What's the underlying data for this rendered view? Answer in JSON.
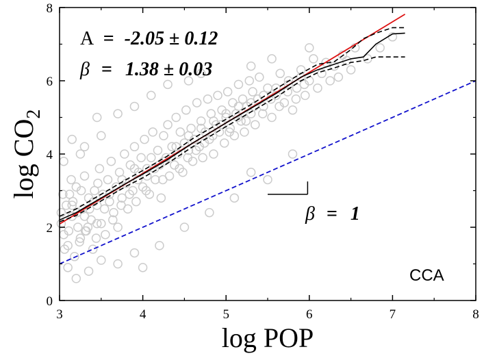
{
  "chart_data": {
    "type": "scatter",
    "title": "",
    "xlabel": "log POP",
    "ylabel": "log CO",
    "ylabel_subscript": "2",
    "xlim": [
      3,
      8
    ],
    "ylim": [
      0,
      8
    ],
    "x_ticks": [
      3,
      4,
      5,
      6,
      7,
      8
    ],
    "y_ticks": [
      0,
      2,
      4,
      6,
      8
    ],
    "dataset_tag": "CCA",
    "annotations": {
      "A_label": "A",
      "A_equals": "=",
      "A_value": "-2.05 ± 0.12",
      "beta_symbol": "β",
      "beta_equals": "=",
      "beta_value": "1.38 ± 0.03",
      "beta_ref_symbol": "β",
      "beta_ref_equals": "=",
      "beta_ref_value": "1"
    },
    "fit_line": {
      "name": "power-law fit",
      "color": "#dd1111",
      "intercept": -2.05,
      "slope": 1.38,
      "x_range": [
        3,
        7.15
      ]
    },
    "reference_line": {
      "name": "slope 1 reference",
      "color": "#1111cc",
      "intercept": -2,
      "slope": 1,
      "x_range": [
        3,
        8
      ]
    },
    "slope_marker": {
      "x_start": 5.5,
      "x_end": 5.98,
      "y_base": 2.9,
      "height": 0.35
    },
    "conditional_mean": {
      "x": [
        3.0,
        3.2,
        3.5,
        3.8,
        4.0,
        4.3,
        4.6,
        5.0,
        5.3,
        5.6,
        5.9,
        6.1,
        6.3,
        6.5,
        6.65,
        6.8,
        7.0,
        7.15
      ],
      "y": [
        2.2,
        2.4,
        2.8,
        3.2,
        3.45,
        3.85,
        4.3,
        4.85,
        5.25,
        5.65,
        6.1,
        6.3,
        6.45,
        6.6,
        6.65,
        7.0,
        7.28,
        7.3
      ]
    },
    "confidence_upper": {
      "x": [
        3.0,
        3.2,
        3.5,
        3.8,
        4.0,
        4.3,
        4.6,
        5.0,
        5.3,
        5.6,
        5.9,
        6.1,
        6.3,
        6.5,
        6.65,
        6.8,
        7.0,
        7.15
      ],
      "y": [
        2.3,
        2.5,
        2.9,
        3.3,
        3.55,
        3.95,
        4.42,
        4.95,
        5.35,
        5.78,
        6.2,
        6.45,
        6.52,
        6.85,
        7.15,
        7.3,
        7.45,
        7.45
      ]
    },
    "confidence_lower": {
      "x": [
        3.0,
        3.2,
        3.5,
        3.8,
        4.0,
        4.3,
        4.6,
        5.0,
        5.3,
        5.6,
        5.9,
        6.1,
        6.3,
        6.5,
        6.65,
        6.8,
        7.0,
        7.15
      ],
      "y": [
        2.15,
        2.32,
        2.72,
        3.12,
        3.35,
        3.75,
        4.2,
        4.75,
        5.15,
        5.55,
        6.0,
        6.22,
        6.35,
        6.5,
        6.55,
        6.65,
        6.65,
        6.65
      ]
    },
    "scatter_series": {
      "name": "cities",
      "color": "#cccccc",
      "points": [
        [
          3.02,
          2.1
        ],
        [
          3.05,
          1.8
        ],
        [
          3.08,
          2.6
        ],
        [
          3.1,
          1.5
        ],
        [
          3.12,
          2.9
        ],
        [
          3.15,
          2.3
        ],
        [
          3.18,
          1.2
        ],
        [
          3.2,
          3.1
        ],
        [
          3.22,
          2.0
        ],
        [
          3.25,
          1.7
        ],
        [
          3.28,
          2.5
        ],
        [
          3.3,
          3.4
        ],
        [
          3.32,
          1.9
        ],
        [
          3.35,
          2.8
        ],
        [
          3.38,
          2.2
        ],
        [
          3.4,
          1.4
        ],
        [
          3.42,
          3.0
        ],
        [
          3.45,
          2.6
        ],
        [
          3.48,
          3.6
        ],
        [
          3.5,
          2.1
        ],
        [
          3.52,
          2.9
        ],
        [
          3.55,
          1.8
        ],
        [
          3.58,
          3.3
        ],
        [
          3.6,
          2.7
        ],
        [
          3.62,
          3.8
        ],
        [
          3.65,
          2.4
        ],
        [
          3.68,
          3.1
        ],
        [
          3.7,
          2.0
        ],
        [
          3.72,
          3.5
        ],
        [
          3.75,
          2.8
        ],
        [
          3.78,
          4.0
        ],
        [
          3.8,
          3.2
        ],
        [
          3.82,
          2.5
        ],
        [
          3.85,
          3.7
        ],
        [
          3.88,
          3.0
        ],
        [
          3.9,
          4.2
        ],
        [
          3.92,
          2.7
        ],
        [
          3.95,
          3.5
        ],
        [
          3.98,
          3.9
        ],
        [
          4.0,
          3.1
        ],
        [
          4.02,
          4.4
        ],
        [
          4.05,
          3.6
        ],
        [
          4.08,
          2.9
        ],
        [
          4.1,
          3.9
        ],
        [
          4.12,
          4.6
        ],
        [
          4.15,
          3.3
        ],
        [
          4.18,
          4.1
        ],
        [
          4.2,
          3.7
        ],
        [
          4.22,
          2.8
        ],
        [
          4.25,
          4.5
        ],
        [
          4.28,
          3.9
        ],
        [
          4.3,
          4.8
        ],
        [
          4.32,
          3.4
        ],
        [
          4.35,
          4.2
        ],
        [
          4.38,
          3.7
        ],
        [
          4.4,
          5.0
        ],
        [
          4.42,
          4.0
        ],
        [
          4.45,
          4.6
        ],
        [
          4.48,
          3.5
        ],
        [
          4.5,
          4.3
        ],
        [
          4.52,
          5.2
        ],
        [
          4.55,
          4.1
        ],
        [
          4.58,
          4.7
        ],
        [
          4.6,
          3.8
        ],
        [
          4.62,
          4.4
        ],
        [
          4.65,
          5.4
        ],
        [
          4.68,
          4.2
        ],
        [
          4.7,
          4.9
        ],
        [
          4.72,
          3.9
        ],
        [
          4.75,
          4.6
        ],
        [
          4.78,
          5.5
        ],
        [
          4.8,
          4.4
        ],
        [
          4.82,
          5.1
        ],
        [
          4.85,
          4.0
        ],
        [
          4.88,
          4.8
        ],
        [
          4.9,
          5.6
        ],
        [
          4.92,
          4.6
        ],
        [
          4.95,
          5.2
        ],
        [
          4.98,
          4.3
        ],
        [
          5.0,
          5.0
        ],
        [
          5.02,
          5.7
        ],
        [
          5.05,
          4.7
        ],
        [
          5.08,
          5.4
        ],
        [
          5.1,
          4.5
        ],
        [
          5.12,
          5.1
        ],
        [
          5.15,
          5.9
        ],
        [
          5.18,
          4.9
        ],
        [
          5.2,
          5.5
        ],
        [
          5.22,
          4.6
        ],
        [
          5.25,
          5.3
        ],
        [
          5.28,
          6.0
        ],
        [
          5.3,
          5.1
        ],
        [
          5.32,
          5.7
        ],
        [
          5.35,
          4.8
        ],
        [
          5.38,
          5.5
        ],
        [
          5.4,
          6.1
        ],
        [
          5.45,
          5.3
        ],
        [
          5.5,
          5.8
        ],
        [
          5.55,
          5.0
        ],
        [
          5.6,
          5.6
        ],
        [
          5.65,
          6.2
        ],
        [
          5.7,
          5.4
        ],
        [
          5.75,
          5.9
        ],
        [
          5.8,
          5.2
        ],
        [
          5.85,
          5.8
        ],
        [
          5.9,
          6.3
        ],
        [
          5.95,
          5.6
        ],
        [
          6.0,
          6.0
        ],
        [
          6.05,
          6.6
        ],
        [
          6.1,
          5.8
        ],
        [
          6.15,
          6.2
        ],
        [
          6.2,
          6.5
        ],
        [
          6.25,
          6.0
        ],
        [
          6.3,
          6.4
        ],
        [
          6.4,
          6.7
        ],
        [
          6.5,
          6.3
        ],
        [
          6.55,
          6.9
        ],
        [
          6.7,
          6.6
        ],
        [
          6.85,
          6.9
        ],
        [
          7.0,
          7.2
        ],
        [
          3.1,
          0.9
        ],
        [
          3.2,
          0.6
        ],
        [
          3.35,
          0.8
        ],
        [
          3.5,
          1.1
        ],
        [
          3.7,
          1.0
        ],
        [
          3.9,
          1.3
        ],
        [
          4.0,
          0.9
        ],
        [
          4.2,
          1.5
        ],
        [
          4.5,
          2.0
        ],
        [
          4.8,
          2.4
        ],
        [
          5.1,
          2.8
        ],
        [
          5.3,
          3.5
        ],
        [
          5.5,
          3.3
        ],
        [
          5.8,
          4.0
        ],
        [
          3.3,
          4.2
        ],
        [
          3.5,
          4.5
        ],
        [
          3.7,
          5.1
        ],
        [
          3.9,
          5.3
        ],
        [
          4.1,
          5.6
        ],
        [
          4.3,
          5.9
        ],
        [
          3.05,
          3.8
        ],
        [
          3.15,
          4.4
        ],
        [
          3.25,
          4.0
        ],
        [
          3.45,
          5.0
        ],
        [
          4.55,
          6.0
        ],
        [
          4.7,
          6.2
        ],
        [
          5.3,
          6.4
        ],
        [
          5.55,
          6.6
        ],
        [
          6.0,
          6.9
        ],
        [
          3.15,
          2.6
        ],
        [
          3.3,
          2.3
        ],
        [
          3.45,
          2.1
        ],
        [
          3.6,
          2.9
        ],
        [
          3.75,
          3.3
        ],
        [
          3.9,
          3.6
        ],
        [
          4.05,
          3.4
        ],
        [
          4.25,
          3.8
        ],
        [
          4.4,
          4.2
        ],
        [
          4.55,
          4.5
        ],
        [
          4.7,
          4.7
        ],
        [
          4.85,
          4.9
        ],
        [
          5.0,
          5.1
        ],
        [
          5.15,
          5.3
        ],
        [
          5.3,
          5.4
        ],
        [
          5.45,
          5.6
        ],
        [
          5.6,
          5.8
        ],
        [
          5.75,
          6.0
        ],
        [
          5.9,
          6.1
        ],
        [
          3.04,
          2.9
        ],
        [
          3.14,
          3.3
        ],
        [
          3.24,
          1.6
        ],
        [
          3.34,
          2.0
        ],
        [
          3.44,
          1.7
        ],
        [
          3.54,
          2.5
        ],
        [
          3.64,
          2.2
        ],
        [
          3.74,
          2.6
        ],
        [
          3.84,
          2.9
        ],
        [
          3.94,
          3.3
        ],
        [
          4.04,
          3.0
        ],
        [
          4.14,
          3.6
        ],
        [
          4.24,
          3.3
        ],
        [
          4.34,
          3.9
        ],
        [
          4.44,
          3.6
        ],
        [
          4.54,
          3.9
        ],
        [
          4.64,
          4.1
        ],
        [
          4.74,
          4.3
        ],
        [
          4.84,
          4.5
        ],
        [
          4.94,
          4.8
        ],
        [
          5.04,
          4.6
        ],
        [
          5.14,
          5.0
        ],
        [
          5.24,
          4.9
        ],
        [
          5.34,
          5.3
        ],
        [
          5.44,
          5.1
        ],
        [
          5.54,
          5.5
        ],
        [
          5.64,
          5.3
        ],
        [
          5.74,
          5.7
        ],
        [
          5.84,
          5.5
        ],
        [
          5.94,
          5.9
        ],
        [
          6.35,
          6.1
        ],
        [
          6.45,
          6.55
        ],
        [
          3.02,
          2.4
        ],
        [
          3.06,
          1.4
        ],
        [
          3.11,
          1.9
        ],
        [
          3.16,
          2.7
        ],
        [
          3.21,
          2.4
        ],
        [
          3.26,
          3.0
        ],
        [
          3.31,
          1.9
        ],
        [
          3.36,
          2.5
        ],
        [
          3.41,
          2.7
        ],
        [
          3.46,
          3.2
        ]
      ]
    }
  }
}
